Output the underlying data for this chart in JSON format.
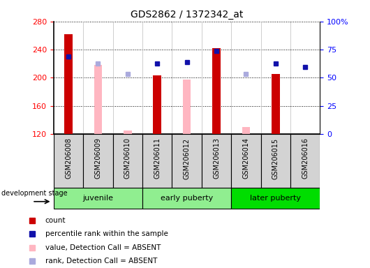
{
  "title": "GDS2862 / 1372342_at",
  "samples": [
    "GSM206008",
    "GSM206009",
    "GSM206010",
    "GSM206011",
    "GSM206012",
    "GSM206013",
    "GSM206014",
    "GSM206015",
    "GSM206016"
  ],
  "red_bars": [
    262,
    null,
    null,
    203,
    null,
    242,
    null,
    205,
    null
  ],
  "pink_bars": [
    null,
    218,
    125,
    null,
    197,
    null,
    130,
    null,
    null
  ],
  "blue_squares": [
    230,
    null,
    null,
    220,
    222,
    238,
    null,
    220,
    215
  ],
  "lavender_squares": [
    null,
    220,
    205,
    null,
    null,
    null,
    205,
    null,
    null
  ],
  "ylim_left": [
    120,
    280
  ],
  "ylim_right": [
    0,
    100
  ],
  "yticks_left": [
    120,
    160,
    200,
    240,
    280
  ],
  "yticks_right": [
    0,
    25,
    50,
    75,
    100
  ],
  "yticklabels_right": [
    "0",
    "25",
    "50",
    "75",
    "100%"
  ],
  "bar_width": 0.5,
  "red_color": "#CC0000",
  "pink_color": "#FFB6C1",
  "blue_color": "#1111AA",
  "lavender_color": "#AAAADD",
  "plot_bg_color": "#FFFFFF",
  "sample_bg_color": "#D3D3D3",
  "group_defs": [
    [
      0,
      2,
      "juvenile",
      "#90EE90"
    ],
    [
      3,
      5,
      "early puberty",
      "#90EE90"
    ],
    [
      6,
      8,
      "later puberty",
      "#00DD00"
    ]
  ],
  "legend_items": [
    [
      "#CC0000",
      "count"
    ],
    [
      "#1111AA",
      "percentile rank within the sample"
    ],
    [
      "#FFB6C1",
      "value, Detection Call = ABSENT"
    ],
    [
      "#AAAADD",
      "rank, Detection Call = ABSENT"
    ]
  ]
}
